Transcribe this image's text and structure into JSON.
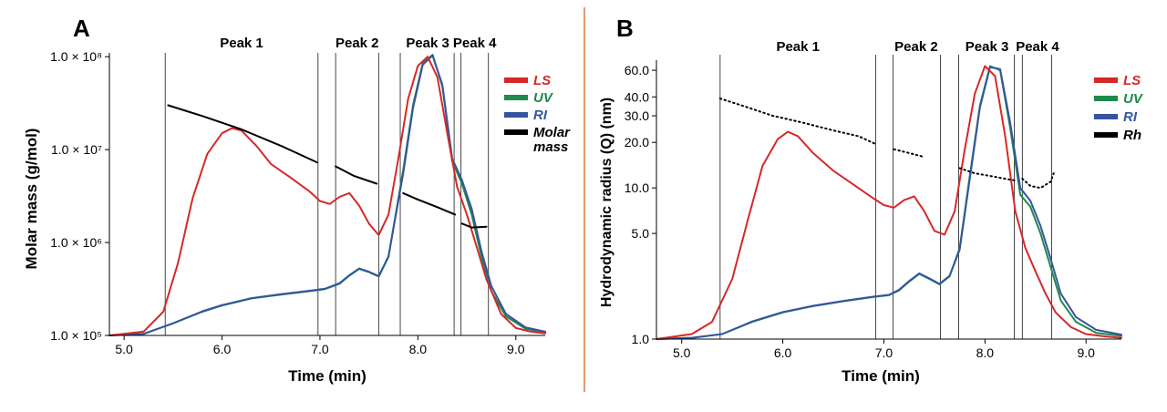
{
  "divider_color": "#e07a3c",
  "chart_data": [
    {
      "type": "line",
      "panel_label": "A",
      "xlabel": "Time (min)",
      "ylabel": "Molar mass (g/mol)",
      "xlim": [
        4.85,
        9.3
      ],
      "ylim": [
        100000,
        110000000
      ],
      "yscale": "log",
      "x_ticks": [
        {
          "value": 5.0,
          "label": "5.0"
        },
        {
          "value": 6.0,
          "label": "6.0"
        },
        {
          "value": 7.0,
          "label": "7.0"
        },
        {
          "value": 8.0,
          "label": "8.0"
        },
        {
          "value": 9.0,
          "label": "9.0"
        }
      ],
      "y_ticks": [
        {
          "value": 100000,
          "label": "1.0 × 10⁵"
        },
        {
          "value": 1000000,
          "label": "1.0 × 10⁶"
        },
        {
          "value": 10000000,
          "label": "1.0 × 10⁷"
        },
        {
          "value": 100000000,
          "label": "1.0 × 10⁸"
        }
      ],
      "vlines": [
        5.42,
        6.98,
        7.16,
        7.6,
        7.82,
        8.37,
        8.44,
        8.72
      ],
      "peaks": [
        {
          "label": "Peak 1",
          "x": 6.2
        },
        {
          "label": "Peak 2",
          "x": 7.38
        },
        {
          "label": "Peak 3",
          "x": 8.1
        },
        {
          "label": "Peak 4",
          "x": 8.58
        }
      ],
      "legend": [
        {
          "label": "LS",
          "color": "#d62828"
        },
        {
          "label": "UV",
          "color": "#1e8a4c"
        },
        {
          "label": "RI",
          "color": "#35559f"
        },
        {
          "label": "Molar mass",
          "color": "#000000"
        }
      ],
      "series": [
        {
          "name": "UV",
          "color": "#1e8a4c",
          "style": "solid",
          "x": [
            4.85,
            5.2,
            5.5,
            5.8,
            6.0,
            6.3,
            6.6,
            6.9,
            7.05,
            7.2,
            7.3,
            7.4,
            7.5,
            7.6,
            7.7,
            7.85,
            7.95,
            8.05,
            8.15,
            8.25,
            8.35,
            8.45,
            8.55,
            8.65,
            8.75,
            8.9,
            9.1,
            9.3
          ],
          "y": [
            100000,
            104000,
            135000,
            180000,
            210000,
            250000,
            275000,
            300000,
            315000,
            360000,
            440000,
            520000,
            480000,
            430000,
            700000,
            6000000,
            30000000,
            85000000,
            105000000,
            48000000,
            7500000,
            4300000,
            2000000,
            700000,
            300000,
            160000,
            118000,
            108000
          ]
        },
        {
          "name": "RI",
          "color": "#35559f",
          "style": "solid",
          "x": [
            4.85,
            5.2,
            5.5,
            5.8,
            6.0,
            6.3,
            6.6,
            6.9,
            7.05,
            7.2,
            7.3,
            7.4,
            7.5,
            7.6,
            7.7,
            7.85,
            7.95,
            8.05,
            8.15,
            8.25,
            8.35,
            8.45,
            8.55,
            8.65,
            8.75,
            8.9,
            9.1,
            9.3
          ],
          "y": [
            100000,
            104000,
            135000,
            182000,
            212000,
            252000,
            278000,
            303000,
            318000,
            365000,
            445000,
            525000,
            485000,
            435000,
            710000,
            5500000,
            28000000,
            82000000,
            103000000,
            50000000,
            8000000,
            4700000,
            2300000,
            800000,
            340000,
            170000,
            122000,
            110000
          ]
        },
        {
          "name": "LS",
          "color": "#d62828",
          "style": "solid",
          "x": [
            4.85,
            5.2,
            5.4,
            5.55,
            5.7,
            5.85,
            6.0,
            6.1,
            6.2,
            6.35,
            6.5,
            6.7,
            6.9,
            7.0,
            7.1,
            7.2,
            7.3,
            7.4,
            7.5,
            7.6,
            7.7,
            7.8,
            7.9,
            8.0,
            8.1,
            8.2,
            8.3,
            8.4,
            8.5,
            8.6,
            8.7,
            8.85,
            9.0,
            9.15,
            9.3
          ],
          "y": [
            100000,
            110000,
            180000,
            600000,
            3000000,
            9000000,
            15000000,
            17000000,
            16000000,
            11000000,
            7000000,
            5000000,
            3500000,
            2800000,
            2600000,
            3100000,
            3400000,
            2500000,
            1600000,
            1200000,
            2000000,
            8000000,
            35000000,
            80000000,
            100000000,
            60000000,
            15000000,
            4000000,
            2000000,
            900000,
            400000,
            170000,
            120000,
            110000,
            105000
          ]
        },
        {
          "name": "Molar mass",
          "color": "#000000",
          "style": "solid",
          "segments": [
            {
              "x": [
                5.45,
                5.8,
                6.2,
                6.6,
                6.97
              ],
              "y": [
                30000000,
                23000000,
                16500000,
                11000000,
                7300000
              ]
            },
            {
              "x": [
                7.16,
                7.35,
                7.58
              ],
              "y": [
                6600000,
                5200000,
                4300000
              ]
            },
            {
              "x": [
                7.85,
                8.0,
                8.2,
                8.38
              ],
              "y": [
                3400000,
                2900000,
                2400000,
                2000000
              ]
            },
            {
              "x": [
                8.45,
                8.55,
                8.7
              ],
              "y": [
                1600000,
                1450000,
                1480000
              ]
            }
          ]
        }
      ]
    },
    {
      "type": "line",
      "panel_label": "B",
      "xlabel": "Time (min)",
      "ylabel": "Hydrodynamic radius (Q) (nm)",
      "xlim": [
        4.75,
        9.35
      ],
      "ylim": [
        1.0,
        70.0
      ],
      "yscale": "log",
      "x_ticks": [
        {
          "value": 5.0,
          "label": "5.0"
        },
        {
          "value": 6.0,
          "label": "6.0"
        },
        {
          "value": 7.0,
          "label": "7.0"
        },
        {
          "value": 8.0,
          "label": "8.0"
        },
        {
          "value": 9.0,
          "label": "9.0"
        }
      ],
      "y_ticks": [
        {
          "value": 1.0,
          "label": "1.0"
        },
        {
          "value": 5.0,
          "label": "5.0"
        },
        {
          "value": 10.0,
          "label": "10.0"
        },
        {
          "value": 20.0,
          "label": "20.0"
        },
        {
          "value": 30.0,
          "label": "30.0"
        },
        {
          "value": 40.0,
          "label": "40.0"
        },
        {
          "value": 60.0,
          "label": "60.0"
        }
      ],
      "vlines": [
        5.38,
        6.92,
        7.09,
        7.56,
        7.74,
        8.29,
        8.37,
        8.66
      ],
      "peaks": [
        {
          "label": "Peak 1",
          "x": 6.15
        },
        {
          "label": "Peak 2",
          "x": 7.32
        },
        {
          "label": "Peak 3",
          "x": 8.02
        },
        {
          "label": "Peak 4",
          "x": 8.52
        }
      ],
      "legend": [
        {
          "label": "LS",
          "color": "#d62828"
        },
        {
          "label": "UV",
          "color": "#1e8a4c"
        },
        {
          "label": "RI",
          "color": "#35559f"
        },
        {
          "label": "Rh",
          "color": "#000000"
        }
      ],
      "series": [
        {
          "name": "UV",
          "color": "#1e8a4c",
          "style": "solid",
          "x": [
            4.75,
            5.1,
            5.4,
            5.7,
            6.0,
            6.3,
            6.6,
            6.9,
            7.05,
            7.15,
            7.25,
            7.35,
            7.45,
            7.55,
            7.65,
            7.75,
            7.85,
            7.95,
            8.05,
            8.15,
            8.25,
            8.35,
            8.45,
            8.55,
            8.65,
            8.75,
            8.9,
            9.1,
            9.35
          ],
          "y": [
            1.0,
            1.02,
            1.08,
            1.3,
            1.5,
            1.65,
            1.78,
            1.9,
            1.95,
            2.1,
            2.4,
            2.7,
            2.5,
            2.3,
            2.6,
            4.0,
            12.0,
            35.0,
            64.0,
            60.0,
            25.0,
            9.0,
            7.5,
            5.0,
            3.0,
            1.8,
            1.3,
            1.1,
            1.05
          ]
        },
        {
          "name": "RI",
          "color": "#35559f",
          "style": "solid",
          "x": [
            4.75,
            5.1,
            5.4,
            5.7,
            6.0,
            6.3,
            6.6,
            6.9,
            7.05,
            7.15,
            7.25,
            7.35,
            7.45,
            7.55,
            7.65,
            7.75,
            7.85,
            7.95,
            8.05,
            8.15,
            8.25,
            8.35,
            8.45,
            8.55,
            8.65,
            8.75,
            8.9,
            9.1,
            9.35
          ],
          "y": [
            1.0,
            1.02,
            1.08,
            1.31,
            1.51,
            1.66,
            1.79,
            1.91,
            1.96,
            2.12,
            2.42,
            2.72,
            2.52,
            2.32,
            2.62,
            3.9,
            11.5,
            34.0,
            63.0,
            61.0,
            27.0,
            10.0,
            8.2,
            5.6,
            3.4,
            2.0,
            1.4,
            1.15,
            1.07
          ]
        },
        {
          "name": "LS",
          "color": "#d62828",
          "style": "solid",
          "x": [
            4.75,
            5.1,
            5.3,
            5.5,
            5.65,
            5.8,
            5.95,
            6.05,
            6.15,
            6.3,
            6.5,
            6.7,
            6.9,
            7.0,
            7.1,
            7.2,
            7.3,
            7.4,
            7.5,
            7.6,
            7.7,
            7.8,
            7.9,
            8.0,
            8.1,
            8.2,
            8.3,
            8.4,
            8.5,
            8.6,
            8.7,
            8.85,
            9.0,
            9.2,
            9.35
          ],
          "y": [
            1.0,
            1.08,
            1.3,
            2.5,
            6.0,
            14.0,
            21.0,
            23.5,
            22.0,
            17.0,
            13.0,
            10.5,
            8.5,
            7.7,
            7.4,
            8.3,
            8.8,
            7.0,
            5.2,
            4.9,
            7.0,
            18.0,
            42.0,
            64.0,
            55.0,
            22.0,
            7.0,
            4.0,
            2.8,
            2.0,
            1.5,
            1.2,
            1.08,
            1.04,
            1.02
          ]
        },
        {
          "name": "Rh",
          "color": "#000000",
          "style": "dotted",
          "segments": [
            {
              "x": [
                5.38,
                5.6,
                5.9,
                6.2,
                6.5,
                6.75,
                6.92
              ],
              "y": [
                39.0,
                35.0,
                30.0,
                27.0,
                24.0,
                22.0,
                19.5
              ]
            },
            {
              "x": [
                7.1,
                7.25,
                7.4
              ],
              "y": [
                18.0,
                17.0,
                16.0
              ]
            },
            {
              "x": [
                7.75,
                7.9,
                8.05,
                8.2,
                8.3
              ],
              "y": [
                13.5,
                12.5,
                12.0,
                11.5,
                11.2
              ]
            },
            {
              "x": [
                8.37,
                8.45,
                8.55,
                8.65,
                8.68
              ],
              "y": [
                11.5,
                10.3,
                10.0,
                11.0,
                12.5
              ]
            }
          ]
        }
      ]
    }
  ]
}
